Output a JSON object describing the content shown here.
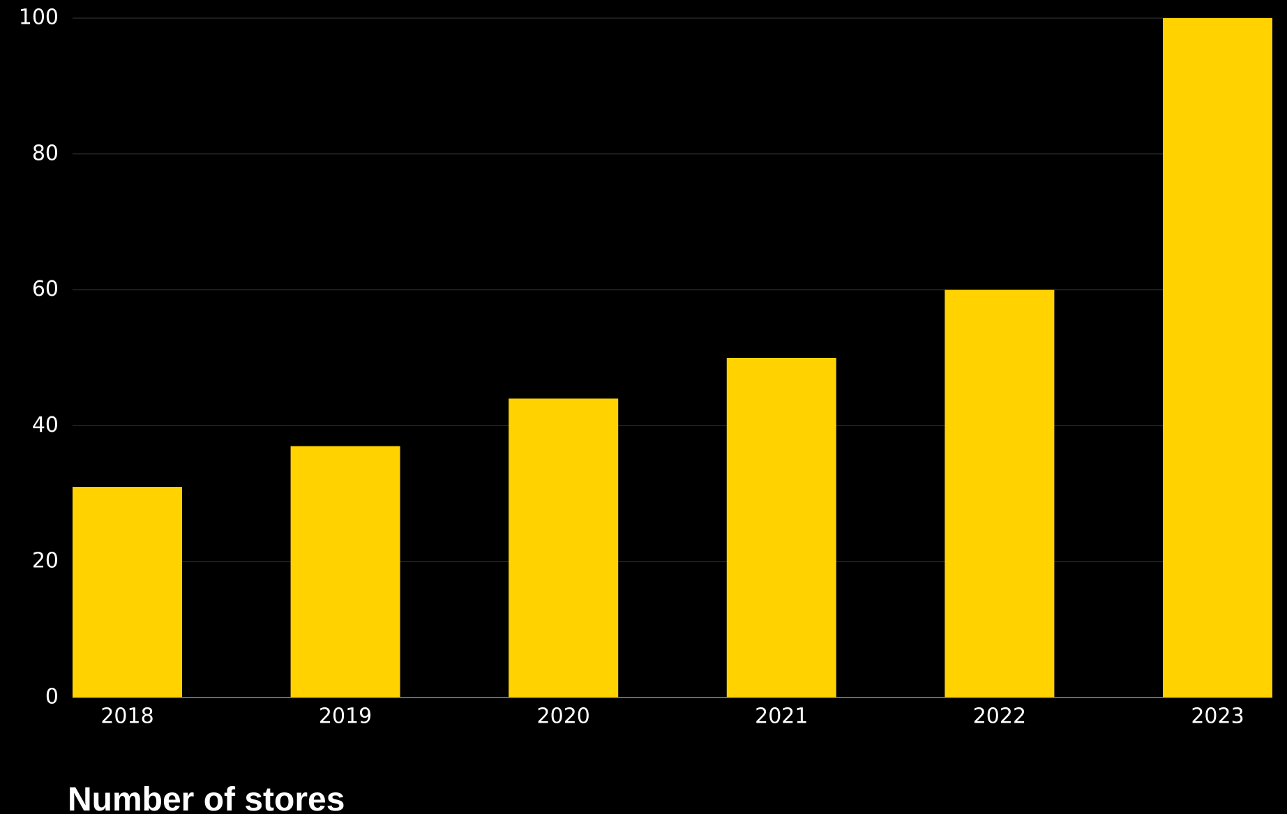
{
  "chart_data": {
    "type": "bar",
    "title": "Number of stores",
    "xlabel": "",
    "ylabel": "",
    "categories": [
      "2018",
      "2019",
      "2020",
      "2021",
      "2022",
      "2023"
    ],
    "values": [
      31,
      37,
      44,
      50,
      60,
      100
    ],
    "ylim": [
      0,
      100
    ],
    "yticks": [
      0,
      20,
      40,
      60,
      80,
      100
    ],
    "grid": true,
    "legend": "none",
    "colors": {
      "background": "#000000",
      "bar": "#FFD200",
      "grid": "#3a3a3a",
      "axis": "#8a8a8a",
      "text": "#ffffff"
    }
  }
}
